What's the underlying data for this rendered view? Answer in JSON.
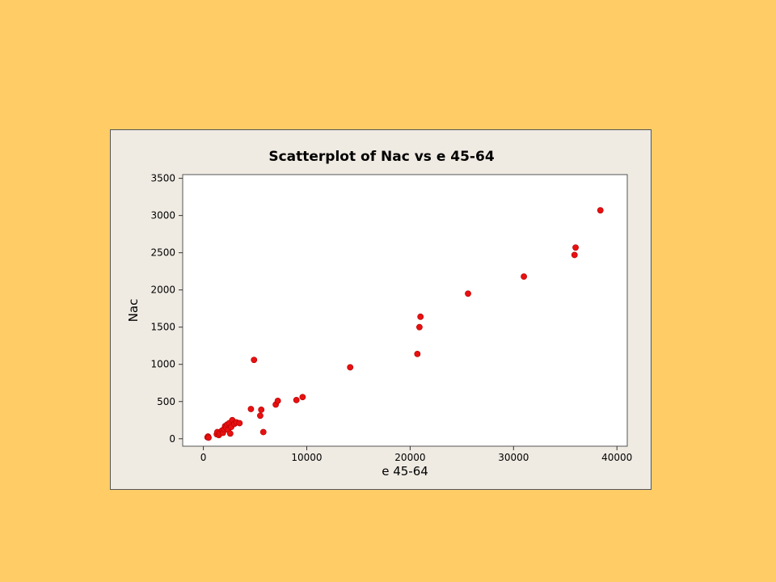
{
  "colors": {
    "page_background": "#FFCC66",
    "frame_background": "#EFEBE3",
    "plot_background": "#FFFFFF",
    "point_color": "#E81010"
  },
  "chart_data": {
    "type": "scatter",
    "title": "Scatterplot of Nac vs e 45-64",
    "xlabel": "e 45-64",
    "ylabel": "Nac",
    "xlim": [
      -2000,
      41000
    ],
    "ylim": [
      -100,
      3550
    ],
    "xticks": [
      0,
      10000,
      20000,
      30000,
      40000
    ],
    "yticks": [
      0,
      500,
      1000,
      1500,
      2000,
      2500,
      3000,
      3500
    ],
    "grid": false,
    "legend": "none",
    "points": [
      {
        "x": 400,
        "y": 20
      },
      {
        "x": 450,
        "y": 30
      },
      {
        "x": 500,
        "y": 15
      },
      {
        "x": 1300,
        "y": 60
      },
      {
        "x": 1350,
        "y": 90
      },
      {
        "x": 1500,
        "y": 50
      },
      {
        "x": 1600,
        "y": 75
      },
      {
        "x": 1800,
        "y": 110
      },
      {
        "x": 1900,
        "y": 80
      },
      {
        "x": 2000,
        "y": 130
      },
      {
        "x": 2100,
        "y": 170
      },
      {
        "x": 2200,
        "y": 150
      },
      {
        "x": 2300,
        "y": 190
      },
      {
        "x": 2400,
        "y": 120
      },
      {
        "x": 2500,
        "y": 210
      },
      {
        "x": 2600,
        "y": 70
      },
      {
        "x": 2700,
        "y": 160
      },
      {
        "x": 2800,
        "y": 250
      },
      {
        "x": 3000,
        "y": 200
      },
      {
        "x": 3200,
        "y": 220
      },
      {
        "x": 3500,
        "y": 210
      },
      {
        "x": 4600,
        "y": 400
      },
      {
        "x": 4900,
        "y": 1060
      },
      {
        "x": 5500,
        "y": 310
      },
      {
        "x": 5600,
        "y": 390
      },
      {
        "x": 5800,
        "y": 90
      },
      {
        "x": 7000,
        "y": 460
      },
      {
        "x": 7200,
        "y": 510
      },
      {
        "x": 9000,
        "y": 520
      },
      {
        "x": 9600,
        "y": 560
      },
      {
        "x": 14200,
        "y": 960
      },
      {
        "x": 20700,
        "y": 1140
      },
      {
        "x": 20900,
        "y": 1500
      },
      {
        "x": 21000,
        "y": 1640
      },
      {
        "x": 25600,
        "y": 1950
      },
      {
        "x": 31000,
        "y": 2180
      },
      {
        "x": 35900,
        "y": 2470
      },
      {
        "x": 36000,
        "y": 2570
      },
      {
        "x": 38400,
        "y": 3070
      }
    ]
  }
}
